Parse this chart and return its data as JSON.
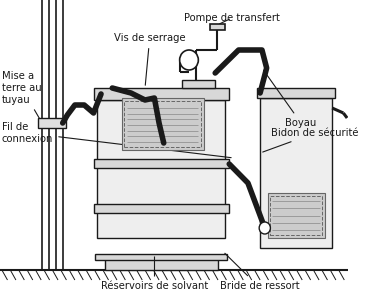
{
  "line_color": "#1a1a1a",
  "labels": {
    "mise_a_terre": "Mise a\nterre au\ntuyau",
    "vis_de_serrage": "Vis de serrage",
    "pompe_de_transfert": "Pompe de transfert",
    "boyau": "Boyau",
    "bidon_de_securite": "Bidon de sécurité",
    "fil_de_connexion": "Fil de\nconnexion",
    "reservoirs": "Réservoirs de solvant",
    "bride_de_ressort": "Bride de ressort"
  },
  "font_size": 7.2,
  "lw_main": 1.0,
  "lw_thick": 4.0,
  "lw_medium": 2.2
}
